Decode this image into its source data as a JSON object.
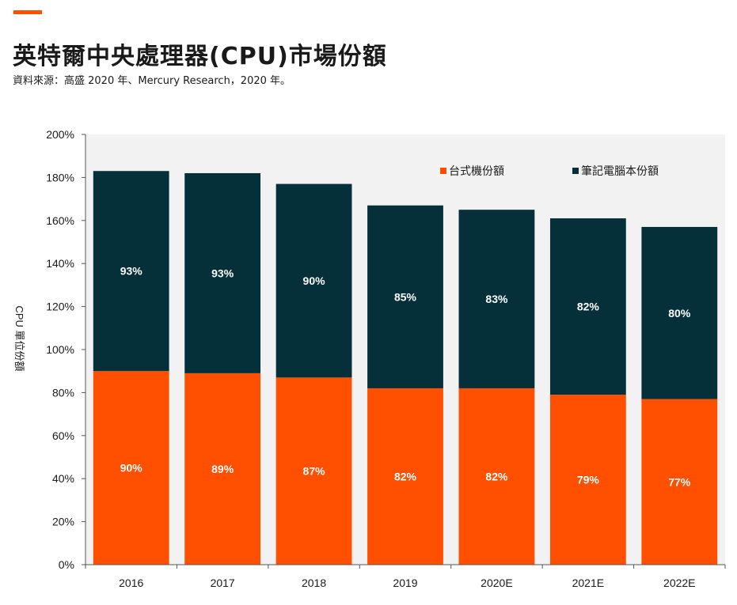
{
  "header": {
    "title": "英特爾中央處理器(CPU)市場份額",
    "source": "資料來源：高盛 2020 年、Mercury  Research，2020 年。"
  },
  "colors": {
    "accent": "#fe5000",
    "desktop": "#fe5000",
    "notebook": "#05303a",
    "plot_bg": "#f2f2f2"
  },
  "chart_data": {
    "type": "bar",
    "stacked": true,
    "categories": [
      "2016",
      "2017",
      "2018",
      "2019",
      "2020E",
      "2021E",
      "2022E"
    ],
    "series": [
      {
        "name": "台式機份額",
        "values": [
          90,
          89,
          87,
          82,
          82,
          79,
          77
        ],
        "labels": [
          "90%",
          "89%",
          "87%",
          "82%",
          "82%",
          "79%",
          "77%"
        ],
        "color": "#fe5000"
      },
      {
        "name": "筆記電腦本份額",
        "values": [
          93,
          93,
          90,
          85,
          83,
          82,
          80
        ],
        "labels": [
          "93%",
          "93%",
          "90%",
          "85%",
          "83%",
          "82%",
          "80%"
        ],
        "color": "#05303a"
      }
    ],
    "ylabel": "CPU 單位份額",
    "xlabel": "",
    "ylim": [
      0,
      200
    ],
    "yticks": [
      "0%",
      "20%",
      "40%",
      "60%",
      "80%",
      "100%",
      "120%",
      "140%",
      "160%",
      "180%",
      "200%"
    ],
    "legend_position": "top-right",
    "grid": false
  }
}
